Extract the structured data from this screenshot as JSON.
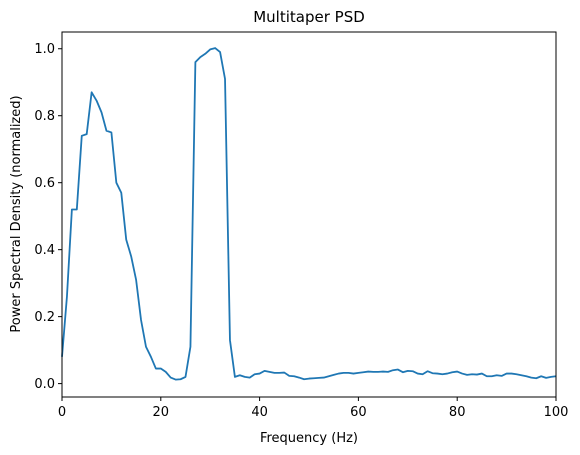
{
  "chart_data": {
    "type": "line",
    "title": "Multitaper PSD",
    "xlabel": "Frequency (Hz)",
    "ylabel": "Power Spectral Density (normalized)",
    "xlim": [
      0,
      100
    ],
    "ylim": [
      -0.04,
      1.05
    ],
    "xticks": [
      0,
      20,
      40,
      60,
      80,
      100
    ],
    "xtick_labels": [
      "0",
      "20",
      "40",
      "60",
      "80",
      "100"
    ],
    "yticks": [
      0.0,
      0.2,
      0.4,
      0.6,
      0.8,
      1.0
    ],
    "ytick_labels": [
      "0.0",
      "0.2",
      "0.4",
      "0.6",
      "0.8",
      "1.0"
    ],
    "grid": false,
    "line_color": "#1f77b4",
    "series": [
      {
        "x": [
          0,
          1,
          2,
          3,
          4,
          5,
          6,
          7,
          8,
          9,
          10,
          11,
          12,
          13,
          14,
          15,
          16,
          17,
          18,
          19,
          20,
          21,
          22,
          23,
          24,
          25,
          26,
          27,
          28,
          29,
          30,
          31,
          32,
          33,
          34,
          35,
          36,
          37,
          38,
          39,
          40,
          41,
          42,
          43,
          44,
          45,
          46,
          47,
          48,
          49,
          50,
          51,
          52,
          53,
          54,
          55,
          56,
          57,
          58,
          59,
          60,
          61,
          62,
          63,
          64,
          65,
          66,
          67,
          68,
          69,
          70,
          71,
          72,
          73,
          74,
          75,
          76,
          77,
          78,
          79,
          80,
          81,
          82,
          83,
          84,
          85,
          86,
          87,
          88,
          89,
          90,
          91,
          92,
          93,
          94,
          95,
          96,
          97,
          98,
          99,
          100
        ],
        "values": [
          0.08,
          0.26,
          0.52,
          0.52,
          0.74,
          0.745,
          0.87,
          0.845,
          0.81,
          0.755,
          0.75,
          0.6,
          0.57,
          0.43,
          0.38,
          0.31,
          0.19,
          0.11,
          0.08,
          0.045,
          0.045,
          0.035,
          0.018,
          0.012,
          0.013,
          0.02,
          0.11,
          0.96,
          0.975,
          0.985,
          0.998,
          1.002,
          0.99,
          0.91,
          0.13,
          0.02,
          0.025,
          0.02,
          0.018,
          0.028,
          0.03,
          0.038,
          0.035,
          0.032,
          0.032,
          0.033,
          0.023,
          0.022,
          0.018,
          0.013,
          0.015,
          0.016,
          0.017,
          0.018,
          0.022,
          0.026,
          0.03,
          0.032,
          0.032,
          0.03,
          0.032,
          0.034,
          0.036,
          0.035,
          0.035,
          0.036,
          0.035,
          0.04,
          0.042,
          0.034,
          0.038,
          0.037,
          0.03,
          0.028,
          0.037,
          0.031,
          0.03,
          0.028,
          0.03,
          0.034,
          0.036,
          0.03,
          0.026,
          0.028,
          0.027,
          0.03,
          0.022,
          0.022,
          0.025,
          0.023,
          0.03,
          0.03,
          0.028,
          0.025,
          0.022,
          0.018,
          0.016,
          0.022,
          0.017,
          0.02,
          0.022
        ]
      }
    ]
  }
}
